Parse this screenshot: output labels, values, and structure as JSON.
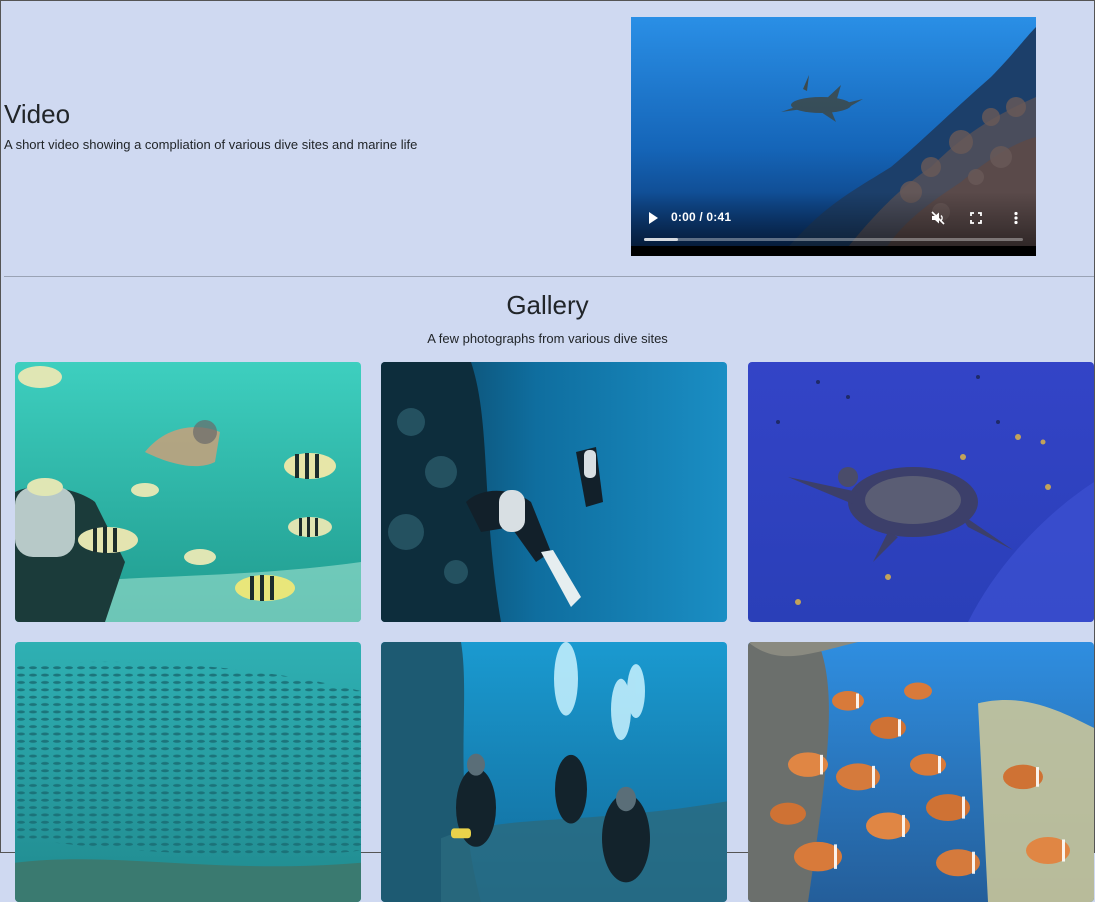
{
  "video_section": {
    "title": "Video",
    "description": "A short video showing a compliation of various dive sites and marine life",
    "player": {
      "time": "0:00 / 0:41",
      "progress_fraction": 0.09,
      "muted": true,
      "icons": [
        "play-icon",
        "muted-volume-icon",
        "fullscreen-icon",
        "more-vertical-icon"
      ]
    }
  },
  "gallery": {
    "title": "Gallery",
    "description": "A few photographs from various dive sites",
    "photos": [
      {
        "subject": "divers-with-sergeant-fish",
        "tint": "#2fb3a9"
      },
      {
        "subject": "diver-along-reef-wall",
        "tint": "#0f6fa3"
      },
      {
        "subject": "sea-turtle-swimming",
        "tint": "#3646c4"
      },
      {
        "subject": "school-of-small-fish",
        "tint": "#2f9a9e"
      },
      {
        "subject": "divers-with-bubbles",
        "tint": "#1a86b8"
      },
      {
        "subject": "orange-fish-over-coral",
        "tint": "#3a7ec2"
      }
    ]
  }
}
